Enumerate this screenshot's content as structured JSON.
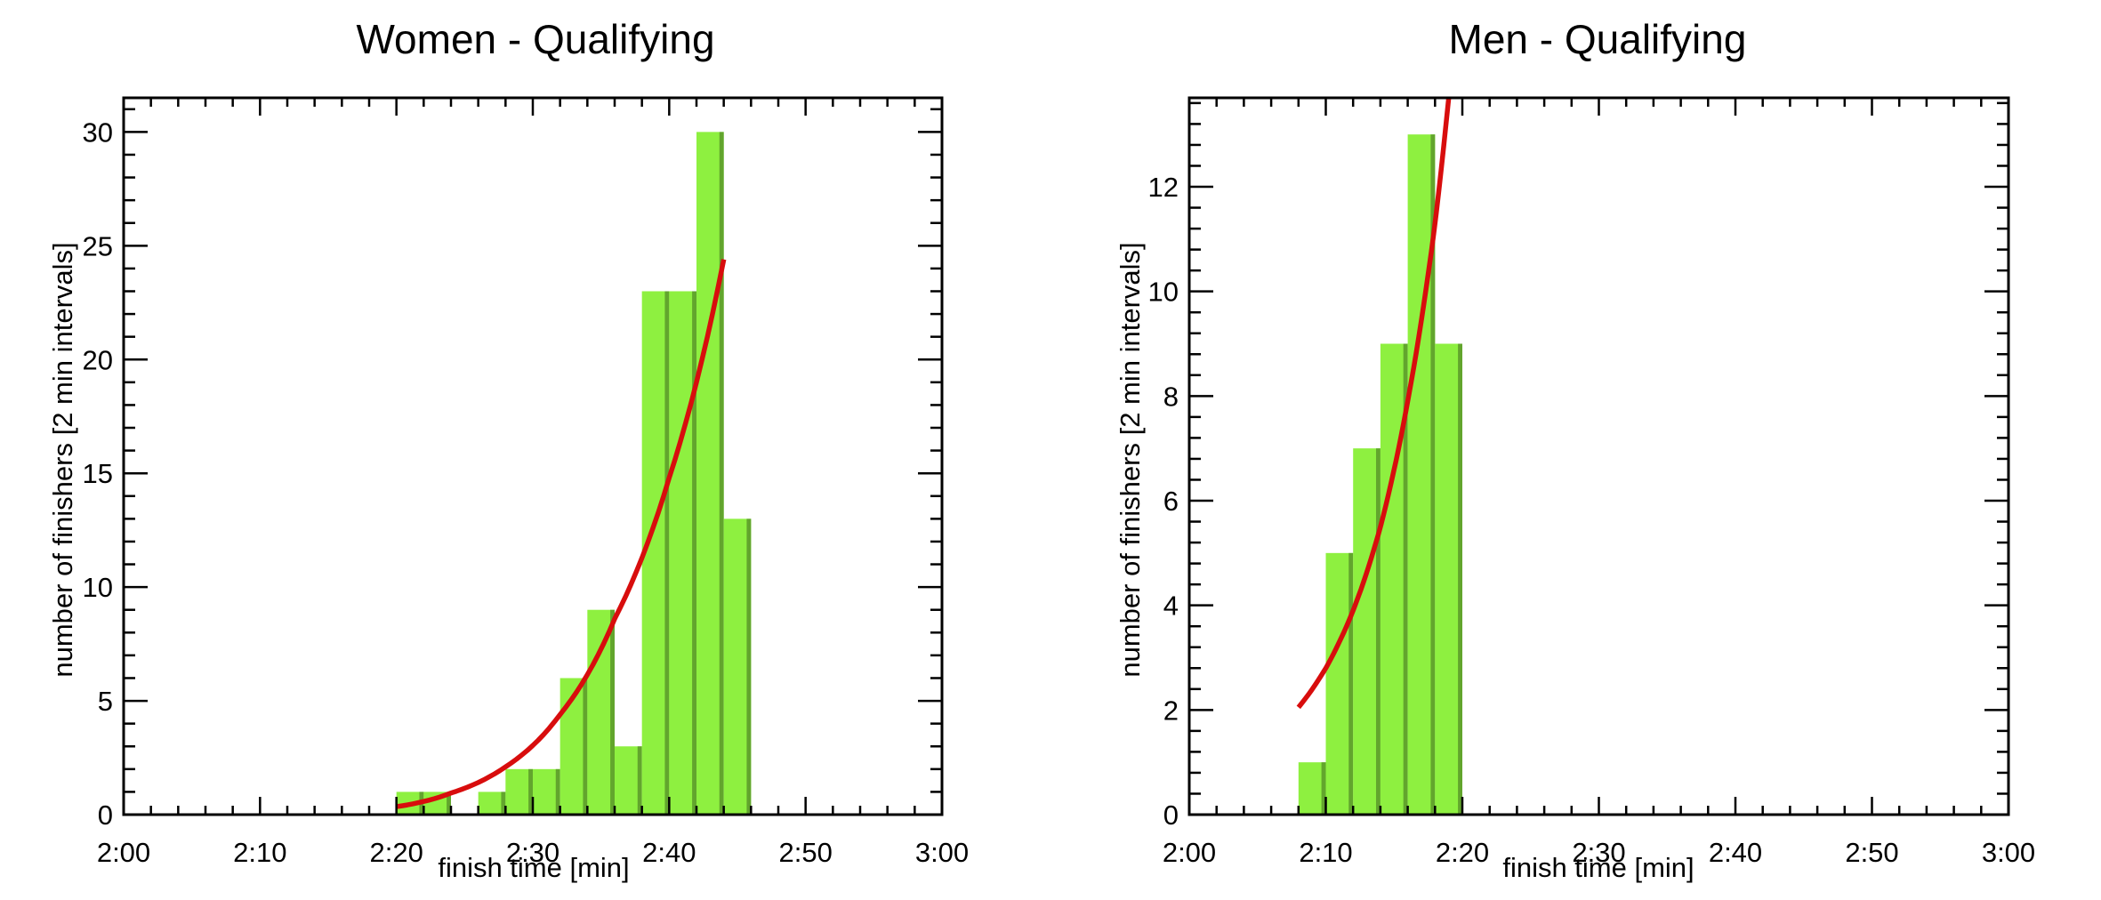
{
  "chart_data": [
    {
      "type": "bar",
      "title": "Women - Qualifying",
      "xlabel": "finish time [min]",
      "ylabel": "number of finishers [2 min intervals]",
      "xlim": [
        "2:00",
        "3:00"
      ],
      "ylim": [
        0,
        31.5
      ],
      "x_ticks": [
        "2:00",
        "2:10",
        "2:20",
        "2:30",
        "2:40",
        "2:50",
        "3:00"
      ],
      "y_ticks": [
        0,
        5,
        10,
        15,
        20,
        25,
        30
      ],
      "bin_width": "2 min",
      "bins": [
        "2:20",
        "2:22",
        "2:24",
        "2:26",
        "2:28",
        "2:30",
        "2:32",
        "2:34",
        "2:36",
        "2:38",
        "2:40",
        "2:42",
        "2:44"
      ],
      "values": [
        1,
        1,
        0,
        1,
        2,
        2,
        6,
        9,
        3,
        23,
        23,
        30,
        13
      ],
      "bar_color": "#8ef040",
      "bar_shadow_color": "#62a52d",
      "fit_line": {
        "color": "#d80d0d",
        "x": [
          "2:20",
          "2:24",
          "2:28",
          "2:32",
          "2:36",
          "2:40",
          "2:44"
        ],
        "y": [
          0.35,
          0.95,
          2.1,
          4.4,
          8.6,
          14.8,
          24.4
        ]
      },
      "grid": false,
      "legend": "none"
    },
    {
      "type": "bar",
      "title": "Men - Qualifying",
      "xlabel": "finish time [min]",
      "ylabel": "number of finishers [2 min intervals]",
      "xlim": [
        "2:00",
        "3:00"
      ],
      "ylim": [
        0,
        13.7
      ],
      "x_ticks": [
        "2:00",
        "2:10",
        "2:20",
        "2:30",
        "2:40",
        "2:50",
        "3:00"
      ],
      "y_ticks": [
        0,
        2,
        4,
        6,
        8,
        10,
        12
      ],
      "bin_width": "2 min",
      "bins": [
        "2:08",
        "2:10",
        "2:12",
        "2:14",
        "2:16",
        "2:18"
      ],
      "values": [
        1,
        5,
        7,
        9,
        13,
        9
      ],
      "bar_color": "#8ef040",
      "bar_shadow_color": "#62a52d",
      "fit_line": {
        "color": "#d80d0d",
        "x": [
          "2:08",
          "2:10",
          "2:12",
          "2:14",
          "2:16",
          "2:18",
          "2:19"
        ],
        "y": [
          2.05,
          2.8,
          3.9,
          5.5,
          7.9,
          11.3,
          13.7
        ]
      },
      "grid": false,
      "legend": "none"
    }
  ]
}
